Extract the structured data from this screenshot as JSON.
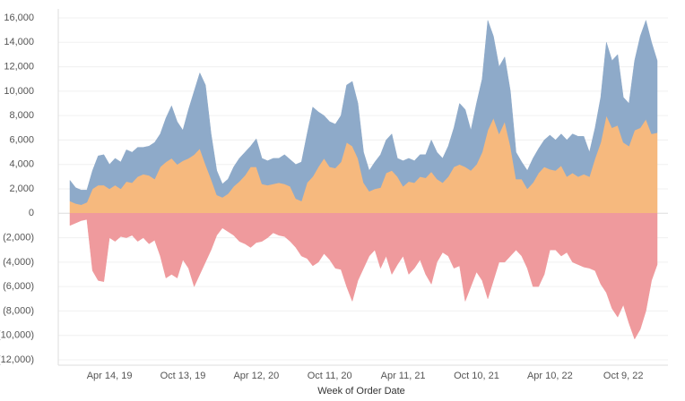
{
  "chart_data": {
    "type": "area",
    "stacked": true,
    "x_label": "Week of Order Date",
    "categories": [
      null,
      null,
      null,
      null,
      null,
      null,
      null,
      "Apr 14, 19",
      null,
      null,
      null,
      null,
      null,
      null,
      null,
      null,
      null,
      null,
      null,
      null,
      "Oct 13, 19",
      null,
      null,
      null,
      null,
      null,
      null,
      null,
      null,
      null,
      null,
      null,
      null,
      "Apr 12, 20",
      null,
      null,
      null,
      null,
      null,
      null,
      null,
      null,
      null,
      null,
      null,
      null,
      "Oct 11, 20",
      null,
      null,
      null,
      null,
      null,
      null,
      null,
      null,
      null,
      null,
      null,
      null,
      "Apr 11, 21",
      null,
      null,
      null,
      null,
      null,
      null,
      null,
      null,
      null,
      null,
      null,
      null,
      "Oct 10, 21",
      null,
      null,
      null,
      null,
      null,
      null,
      null,
      null,
      null,
      null,
      null,
      null,
      "Apr 10, 22",
      null,
      null,
      null,
      null,
      null,
      null,
      null,
      null,
      null,
      null,
      null,
      null,
      "Oct 9, 22",
      null,
      null,
      null,
      null,
      null,
      null
    ],
    "series": [
      {
        "color": "#f6b97e",
        "values": [
          1000,
          800,
          700,
          900,
          2000,
          2300,
          2300,
          2000,
          2300,
          2000,
          2600,
          2500,
          3000,
          3200,
          3100,
          2800,
          3800,
          4200,
          4500,
          4000,
          4300,
          4500,
          4800,
          5300,
          4000,
          2800,
          1500,
          1300,
          1600,
          2200,
          2600,
          3100,
          3800,
          3800,
          2400,
          2300,
          2400,
          2500,
          2400,
          2200,
          1200,
          1000,
          2500,
          3000,
          3800,
          4500,
          3800,
          3700,
          4200,
          5800,
          5500,
          4500,
          2500,
          1800,
          2000,
          2100,
          3300,
          3500,
          3000,
          2200,
          2600,
          2500,
          3000,
          2900,
          3400,
          2800,
          2500,
          3000,
          3800,
          4000,
          3800,
          3500,
          4000,
          5000,
          6800,
          7800,
          6500,
          7500,
          5500,
          2800,
          2800,
          2000,
          2500,
          3300,
          3800,
          3600,
          3500,
          3900,
          3000,
          3300,
          3000,
          3200,
          3000,
          4500,
          5800,
          8000,
          7000,
          7200,
          5800,
          5500,
          6800,
          7000,
          7700,
          6500,
          6600
        ]
      },
      {
        "color": "#8eaac9",
        "values": [
          1700,
          1300,
          1200,
          1000,
          1500,
          2400,
          2500,
          2000,
          2200,
          2200,
          2600,
          2500,
          2400,
          2200,
          2400,
          3000,
          2700,
          3600,
          4300,
          3500,
          2500,
          4000,
          5200,
          6200,
          6500,
          3700,
          2000,
          1100,
          1200,
          1600,
          1900,
          1900,
          1700,
          2300,
          2100,
          2000,
          2100,
          2000,
          2400,
          2200,
          2800,
          3200,
          4000,
          5700,
          4500,
          3500,
          3700,
          3600,
          3800,
          4700,
          5300,
          4500,
          2500,
          1700,
          2200,
          2700,
          2700,
          3000,
          1500,
          2100,
          1900,
          1800,
          1800,
          1900,
          2600,
          2200,
          2000,
          2500,
          3200,
          5000,
          4700,
          3300,
          5000,
          6000,
          9000,
          6700,
          5500,
          5300,
          4500,
          2200,
          1400,
          1500,
          2000,
          2000,
          2200,
          2800,
          2500,
          2600,
          3000,
          3200,
          3300,
          3100,
          2000,
          2500,
          3700,
          6000,
          5500,
          5800,
          3700,
          3500,
          5700,
          7500,
          8100,
          7500,
          5900
        ]
      },
      {
        "color": "#ef9a9d",
        "values": [
          -1000,
          -800,
          -600,
          -500,
          -4700,
          -5500,
          -5600,
          -2000,
          -2300,
          -1900,
          -2000,
          -1800,
          -2300,
          -2000,
          -2500,
          -2200,
          -3500,
          -5300,
          -5000,
          -5300,
          -3800,
          -4500,
          -6000,
          -5000,
          -4000,
          -3000,
          -1800,
          -1200,
          -1500,
          -1800,
          -2300,
          -2500,
          -2800,
          -2400,
          -2300,
          -2000,
          -1600,
          -1800,
          -1900,
          -2300,
          -2800,
          -3500,
          -3700,
          -4300,
          -4000,
          -3300,
          -3800,
          -4500,
          -4600,
          -6000,
          -7200,
          -5500,
          -4500,
          -3500,
          -3000,
          -4500,
          -3500,
          -5000,
          -4200,
          -3500,
          -5000,
          -4500,
          -3800,
          -5000,
          -5800,
          -4000,
          -3200,
          -3500,
          -4500,
          -4300,
          -7200,
          -6000,
          -4800,
          -5500,
          -7000,
          -5500,
          -4000,
          -4000,
          -3500,
          -3000,
          -3500,
          -4500,
          -6000,
          -6000,
          -5000,
          -3000,
          -3000,
          -3500,
          -3200,
          -4000,
          -4200,
          -4400,
          -4500,
          -4700,
          -5800,
          -6500,
          -7800,
          -8500,
          -7500,
          -9000,
          -10300,
          -9500,
          -8000,
          -5500,
          -4200
        ]
      }
    ],
    "ylim": [
      -12000,
      16000
    ],
    "yticks": [
      {
        "value": 16000,
        "label": "16,000"
      },
      {
        "value": 14000,
        "label": "14,000"
      },
      {
        "value": 12000,
        "label": "12,000"
      },
      {
        "value": 10000,
        "label": "10,000"
      },
      {
        "value": 8000,
        "label": "8,000"
      },
      {
        "value": 6000,
        "label": "6,000"
      },
      {
        "value": 4000,
        "label": "4,000"
      },
      {
        "value": 2000,
        "label": "2,000"
      },
      0,
      {
        "value": -2000,
        "label": "(2,000)"
      },
      {
        "value": -4000,
        "label": "(4,000)"
      },
      {
        "value": -6000,
        "label": "(6,000)"
      },
      {
        "value": -8000,
        "label": "(8,000)"
      },
      {
        "value": -10000,
        "label": "(10,000)"
      },
      {
        "value": -12000,
        "label": "(12,000)"
      }
    ],
    "grid": true
  }
}
